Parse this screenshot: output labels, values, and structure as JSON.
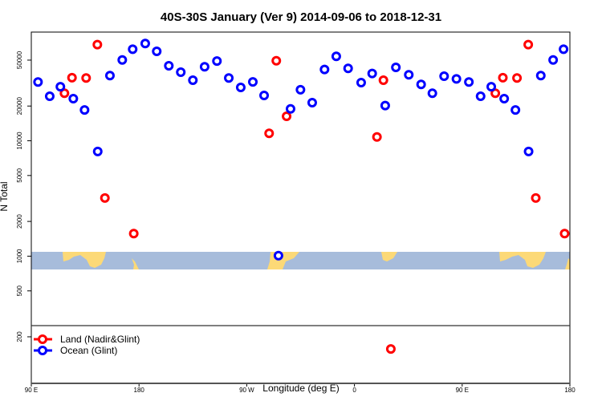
{
  "chart_data": {
    "type": "scatter",
    "title": "40S-30S January (Ver 9)   2014-09-06 to 2018-12-31",
    "xlabel": "Longitude (deg E)",
    "ylabel": "N Total",
    "x_ticks": [
      {
        "lon": 90,
        "label": "90 E"
      },
      {
        "lon": 180,
        "label": "180"
      },
      {
        "lon": -90,
        "label": "90 W"
      },
      {
        "lon": 0,
        "label": "0"
      },
      {
        "lon": 90,
        "label": "90 E"
      },
      {
        "lon": 180,
        "label": "180"
      }
    ],
    "x_range_note": "90 E eastward through 180 to 180 (450 degrees, 90E-180 repeated)",
    "y_scale": "log",
    "y_ticks": [
      200,
      500,
      1000,
      2000,
      5000,
      10000,
      20000,
      50000
    ],
    "ylim": [
      79,
      87500
    ],
    "grid": false,
    "legend_placement": "bottom-left",
    "colors": {
      "land": "#ff0000",
      "ocean": "#0000ff",
      "map_ocean": "#a7bcdb",
      "map_land": "#fcd977"
    },
    "series": [
      {
        "name": "Land (Nadir&Glint)",
        "color": "#ff0000",
        "points": [
          [
            117.7,
            25800
          ],
          [
            124.0,
            35200
          ],
          [
            135.8,
            35000
          ],
          [
            145.2,
            68100
          ],
          [
            151.5,
            3190
          ],
          [
            175.6,
            1570
          ],
          [
            -71.3,
            11600
          ],
          [
            -65.3,
            49400
          ],
          [
            -56.7,
            16300
          ],
          [
            18.8,
            10800
          ],
          [
            24.2,
            33500
          ],
          [
            30.4,
            157
          ]
        ]
      },
      {
        "name": "Ocean (Glint)",
        "color": "#0000ff",
        "points": [
          [
            95.6,
            32300
          ],
          [
            105.4,
            24300
          ],
          [
            114.3,
            29400
          ],
          [
            125.1,
            23200
          ],
          [
            134.5,
            18500
          ],
          [
            145.5,
            8070
          ],
          [
            155.7,
            36700
          ],
          [
            166.0,
            50200
          ],
          [
            174.7,
            62200
          ],
          [
            -174.8,
            69700
          ],
          [
            -165.2,
            59600
          ],
          [
            -155.1,
            44700
          ],
          [
            -145.1,
            39300
          ],
          [
            -135.0,
            33500
          ],
          [
            -125.2,
            43800
          ],
          [
            -114.9,
            49100
          ],
          [
            -105.0,
            35000
          ],
          [
            -95.0,
            29000
          ],
          [
            -84.9,
            32400
          ],
          [
            -75.5,
            24700
          ],
          [
            -63.5,
            1010
          ],
          [
            -53.4,
            18900
          ],
          [
            -45.1,
            27700
          ],
          [
            -35.3,
            21400
          ],
          [
            -25.0,
            41500
          ],
          [
            -15.2,
            53900
          ],
          [
            -5.3,
            42400
          ],
          [
            5.6,
            31900
          ],
          [
            14.8,
            38300
          ],
          [
            25.7,
            20200
          ],
          [
            34.6,
            43300
          ],
          [
            45.4,
            37300
          ],
          [
            55.7,
            30800
          ],
          [
            65.1,
            25800
          ],
          [
            74.9,
            36300
          ],
          [
            85.2,
            34400
          ]
        ]
      }
    ]
  }
}
